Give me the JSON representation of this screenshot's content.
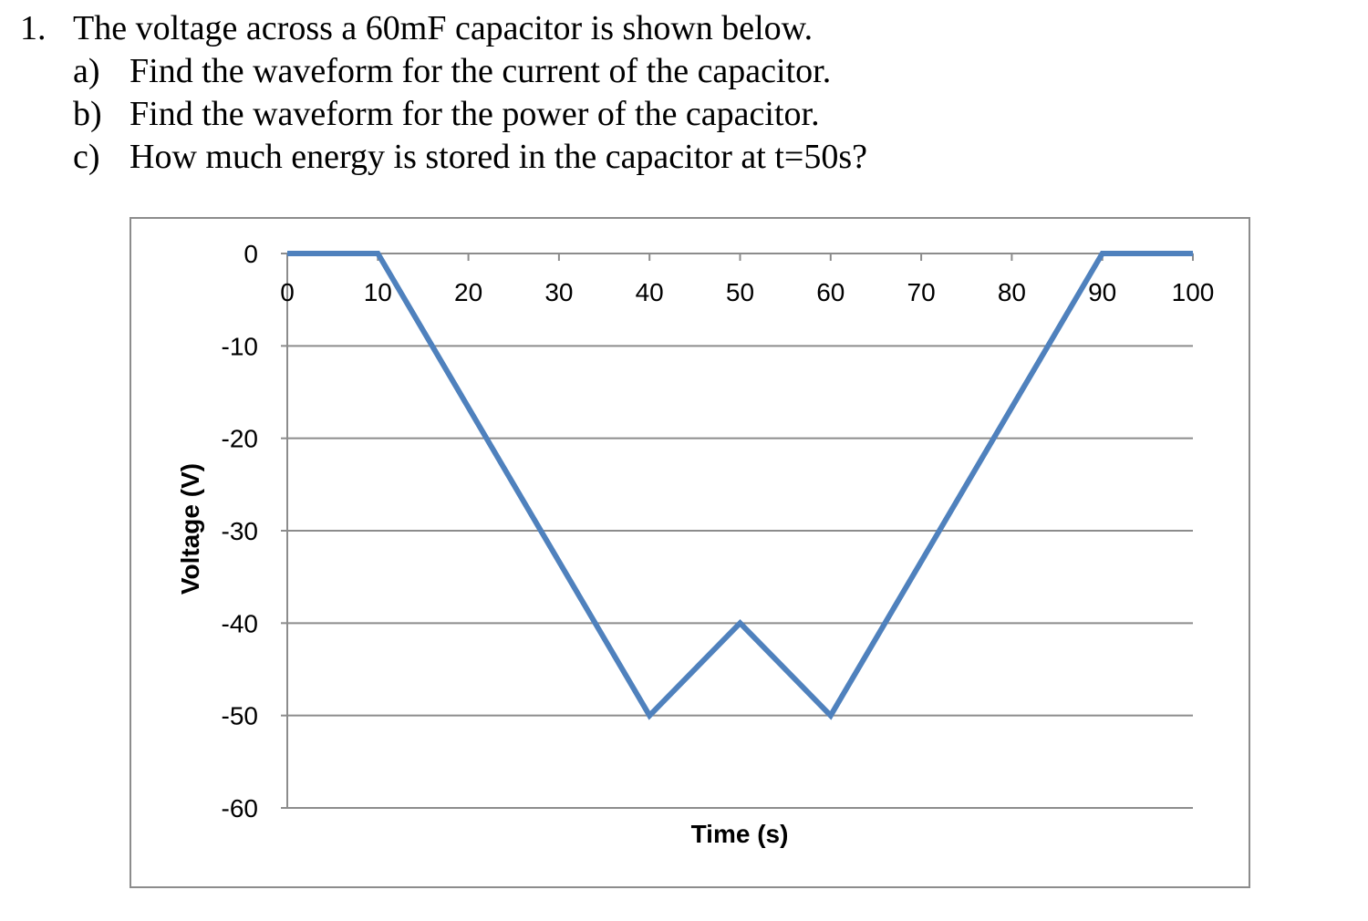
{
  "question": {
    "number": "1.",
    "text": "The voltage across a 60mF capacitor is shown below.",
    "parts": [
      {
        "letter": "a)",
        "text": "Find the waveform for the current of the capacitor."
      },
      {
        "letter": "b)",
        "text": "Find the waveform for the power of the capacitor."
      },
      {
        "letter": "c)",
        "text": "How much energy is stored in the capacitor at t=50s?"
      }
    ]
  },
  "chart_data": {
    "type": "line",
    "title": "",
    "xlabel": "Time (s)",
    "ylabel": "Voltage (V)",
    "xlim": [
      0,
      100
    ],
    "ylim": [
      -60,
      0
    ],
    "x_ticks": [
      0,
      10,
      20,
      30,
      40,
      50,
      60,
      70,
      80,
      90,
      100
    ],
    "y_ticks": [
      0,
      -10,
      -20,
      -30,
      -40,
      -50,
      -60
    ],
    "x_tick_labels": [
      "0",
      "10",
      "20",
      "30",
      "40",
      "50",
      "60",
      "70",
      "80",
      "90",
      "100"
    ],
    "y_tick_labels": [
      "0",
      "-10",
      "-20",
      "-30",
      "-40",
      "-50",
      "-60"
    ],
    "x_axis_position": "top (at V=0)",
    "grid": "horizontal",
    "series": [
      {
        "color": "#4f81bd",
        "x": [
          0,
          10,
          40,
          50,
          60,
          90,
          100
        ],
        "y": [
          0,
          0,
          -50,
          -40,
          -50,
          0,
          0
        ]
      }
    ]
  }
}
